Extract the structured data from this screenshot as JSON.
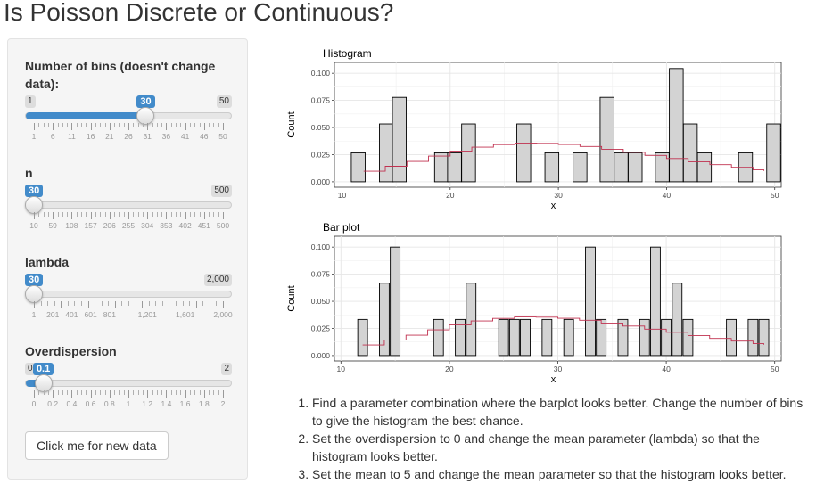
{
  "page_title": "Is Poisson Discrete or Continuous?",
  "sidebar": {
    "bins": {
      "label": "Number of bins (doesn't change data):",
      "min": "1",
      "max": "50",
      "value": "30",
      "fraction": 0.5918,
      "ticks": [
        "1",
        "6",
        "11",
        "16",
        "21",
        "26",
        "31",
        "36",
        "41",
        "46",
        "50"
      ]
    },
    "n": {
      "label": "n",
      "min": "30",
      "max": "500",
      "value": "30",
      "fraction": 0.0,
      "ticks": [
        "10",
        "59",
        "108",
        "157",
        "206",
        "255",
        "304",
        "353",
        "402",
        "451",
        "500"
      ]
    },
    "lambda": {
      "label": "lambda",
      "min": "30",
      "max": "2,000",
      "value": "30",
      "fraction": 0.0,
      "ticks": [
        "1",
        "201",
        "401",
        "601",
        "801",
        "1,201",
        "1,601",
        "2,000"
      ]
    },
    "overdispersion": {
      "label": "Overdispersion",
      "min": "0.1",
      "max": "2",
      "value": "0.1",
      "fraction": 0.05,
      "ticks": [
        "0",
        "0.2",
        "0.4",
        "0.6",
        "0.8",
        "1",
        "1.2",
        "1.4",
        "1.6",
        "1.8",
        "2"
      ]
    },
    "button_label": "Click me for new data"
  },
  "colors": {
    "accent": "#428bca",
    "bar_fill": "#d3d3d3",
    "curve": "#c0304f"
  },
  "chart_data": [
    {
      "type": "bar",
      "title": "Histogram",
      "xlabel": "x",
      "ylabel": "Count",
      "xlim": [
        9.3,
        50.6
      ],
      "ylim": [
        -0.005,
        0.11
      ],
      "xticks": [
        "10",
        "20",
        "30",
        "40",
        "50"
      ],
      "yticks": [
        "0.000",
        "0.025",
        "0.050",
        "0.075",
        "0.100"
      ],
      "bin_width": 1.28,
      "bars": [
        {
          "x": 11.5,
          "y": 0.0267
        },
        {
          "x": 14.1,
          "y": 0.0533
        },
        {
          "x": 15.3,
          "y": 0.0778
        },
        {
          "x": 19.2,
          "y": 0.0267
        },
        {
          "x": 20.4,
          "y": 0.0267
        },
        {
          "x": 21.7,
          "y": 0.0533
        },
        {
          "x": 26.8,
          "y": 0.0533
        },
        {
          "x": 29.4,
          "y": 0.0267
        },
        {
          "x": 32.0,
          "y": 0.0267
        },
        {
          "x": 34.5,
          "y": 0.0778
        },
        {
          "x": 35.8,
          "y": 0.0267
        },
        {
          "x": 37.1,
          "y": 0.0267
        },
        {
          "x": 39.6,
          "y": 0.0267
        },
        {
          "x": 40.9,
          "y": 0.1044
        },
        {
          "x": 42.2,
          "y": 0.0533
        },
        {
          "x": 43.5,
          "y": 0.0267
        },
        {
          "x": 47.3,
          "y": 0.0267
        },
        {
          "x": 49.9,
          "y": 0.0533
        }
      ],
      "curve": {
        "x": [
          12,
          14,
          16,
          18,
          20,
          22,
          24,
          26,
          28,
          30,
          32,
          34,
          36,
          38,
          40,
          42,
          44,
          46,
          48,
          49
        ],
        "y": [
          0.0097,
          0.0143,
          0.0188,
          0.0237,
          0.0282,
          0.0319,
          0.0343,
          0.0356,
          0.0354,
          0.0344,
          0.0325,
          0.03,
          0.0272,
          0.0243,
          0.0214,
          0.0185,
          0.0158,
          0.0133,
          0.011,
          0.01
        ]
      }
    },
    {
      "type": "bar",
      "title": "Bar plot",
      "xlabel": "x",
      "ylabel": "Count",
      "xlim": [
        9.4,
        50.6
      ],
      "ylim": [
        -0.005,
        0.11
      ],
      "xticks": [
        "10",
        "20",
        "30",
        "40",
        "50"
      ],
      "yticks": [
        "0.000",
        "0.025",
        "0.050",
        "0.075",
        "0.100"
      ],
      "bin_width": 0.9,
      "bars": [
        {
          "x": 12,
          "y": 0.0333
        },
        {
          "x": 14,
          "y": 0.0667
        },
        {
          "x": 15,
          "y": 0.1
        },
        {
          "x": 19,
          "y": 0.0333
        },
        {
          "x": 21,
          "y": 0.0333
        },
        {
          "x": 22,
          "y": 0.0667
        },
        {
          "x": 25,
          "y": 0.0333
        },
        {
          "x": 26,
          "y": 0.0333
        },
        {
          "x": 27,
          "y": 0.0333
        },
        {
          "x": 29,
          "y": 0.0333
        },
        {
          "x": 31,
          "y": 0.0333
        },
        {
          "x": 33,
          "y": 0.1
        },
        {
          "x": 34,
          "y": 0.0333
        },
        {
          "x": 36,
          "y": 0.0333
        },
        {
          "x": 38,
          "y": 0.0333
        },
        {
          "x": 39,
          "y": 0.1
        },
        {
          "x": 40,
          "y": 0.0333
        },
        {
          "x": 41,
          "y": 0.0667
        },
        {
          "x": 42,
          "y": 0.0333
        },
        {
          "x": 46,
          "y": 0.0333
        },
        {
          "x": 48,
          "y": 0.0333
        },
        {
          "x": 49,
          "y": 0.0333
        }
      ],
      "curve": {
        "x": [
          12,
          14,
          16,
          18,
          20,
          22,
          24,
          26,
          28,
          30,
          32,
          34,
          36,
          38,
          40,
          42,
          44,
          46,
          48,
          49
        ],
        "y": [
          0.0097,
          0.0143,
          0.0188,
          0.0237,
          0.0282,
          0.0319,
          0.0343,
          0.0356,
          0.0354,
          0.0344,
          0.0325,
          0.03,
          0.0272,
          0.0243,
          0.0214,
          0.0185,
          0.0158,
          0.0133,
          0.011,
          0.01
        ]
      }
    }
  ],
  "instructions": [
    "Find a parameter combination where the barplot looks better. Change the number of bins to give the histogram the best chance.",
    "Set the overdispersion to 0 and change the mean parameter (lambda) so that the histogram looks better.",
    "Set the mean to 5 and change the mean parameter so that the histogram looks better."
  ]
}
